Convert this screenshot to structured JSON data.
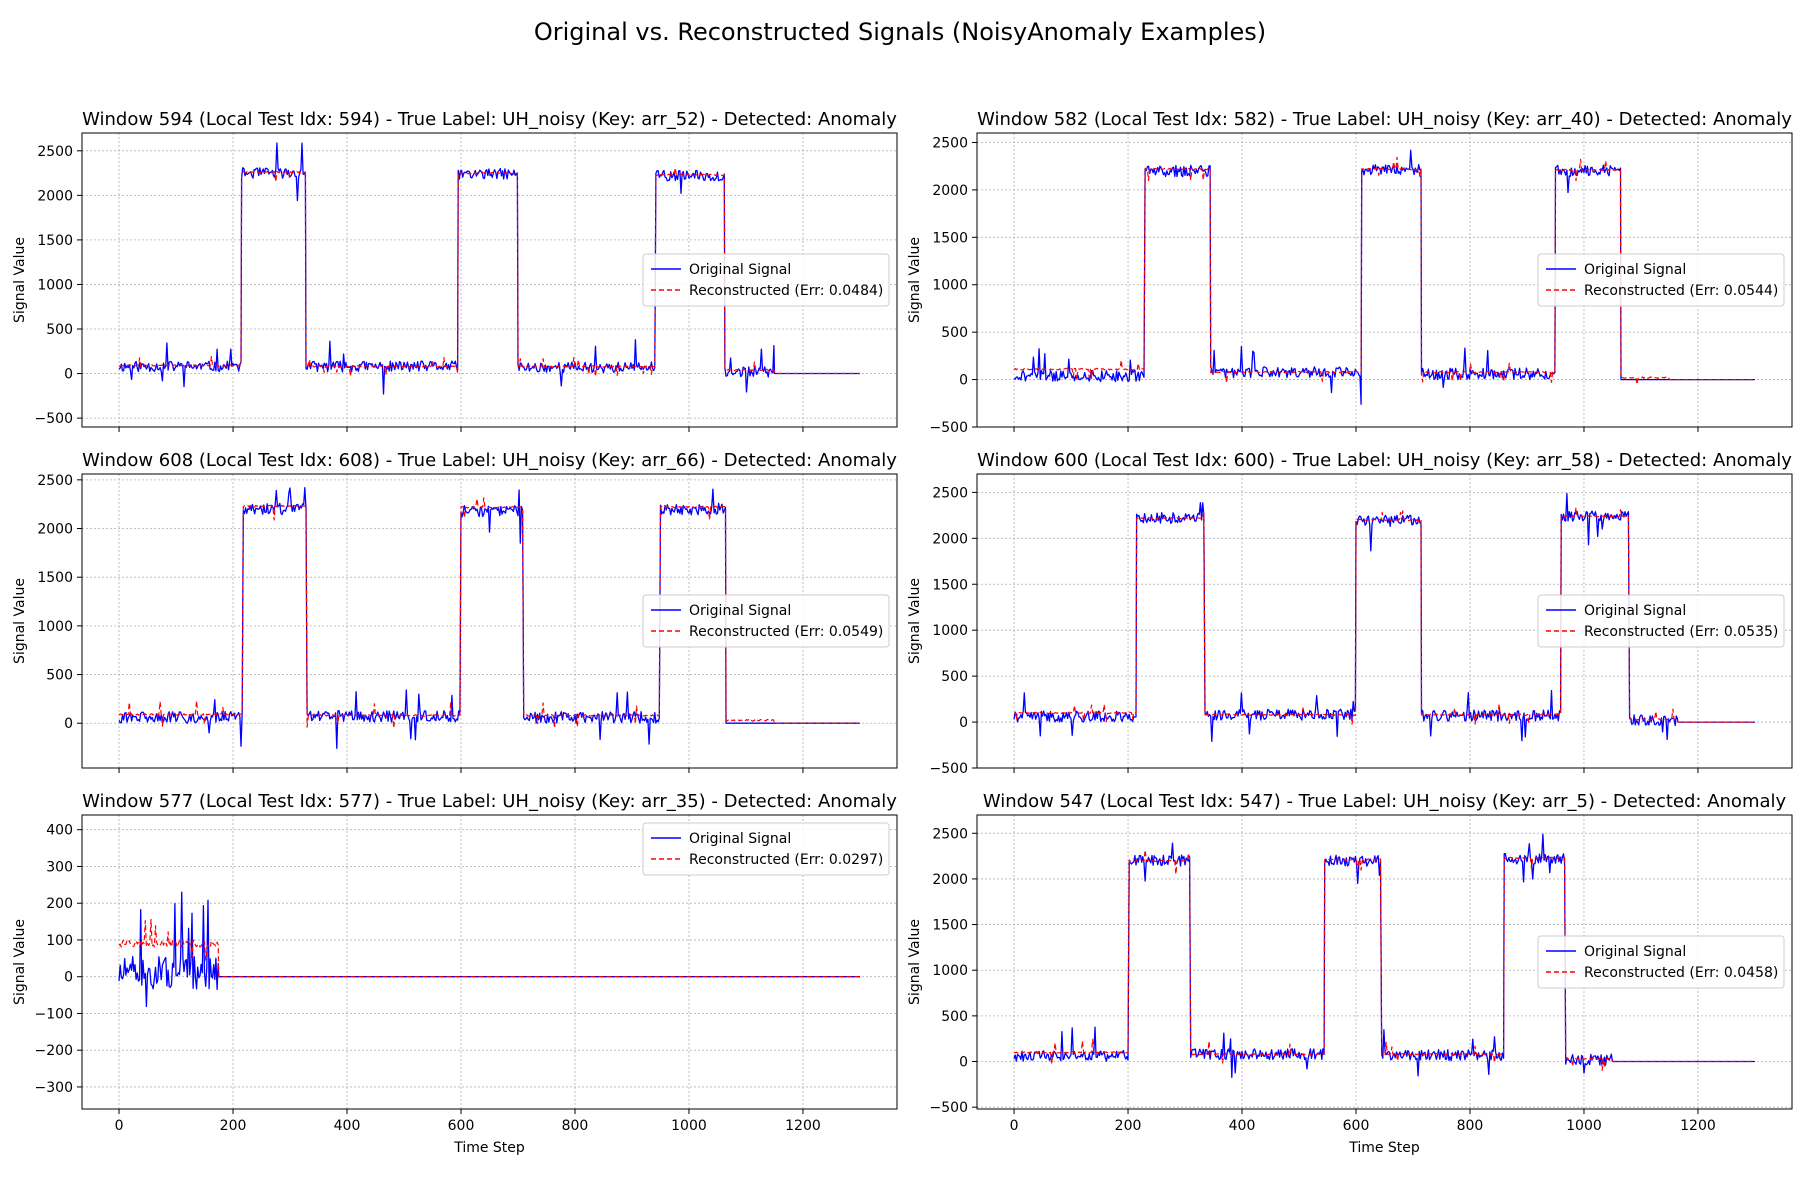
{
  "figure": {
    "title": "Original vs. Reconstructed Signals (NoisyAnomaly Examples)"
  },
  "colors": {
    "original": "#0000ff",
    "reconstructed": "#ff0000",
    "grid": "#b0b0b0"
  },
  "chart_data": [
    {
      "type": "line",
      "title": "Window 594 (Local Test Idx: 594) - True Label: UH_noisy (Key: arr_52) - Detected: Anomaly",
      "xlabel": "",
      "ylabel": "Signal Value",
      "xlim": [
        -65,
        1365
      ],
      "ylim": [
        -600,
        2700
      ],
      "xticks": [],
      "yticks": [
        -500,
        0,
        500,
        1000,
        1500,
        2000,
        2500
      ],
      "grid": true,
      "legend": "center-right",
      "series": [
        {
          "name": "Original Signal",
          "style": "solid",
          "seed": 11,
          "noise": 60,
          "spike": 320,
          "segments": [
            [
              0,
              215,
              80
            ],
            [
              215,
              328,
              2250
            ],
            [
              328,
              595,
              80
            ],
            [
              595,
              700,
              2240
            ],
            [
              700,
              942,
              70
            ],
            [
              942,
              1063,
              2220
            ],
            [
              1063,
              1150,
              20
            ],
            [
              1150,
              1300,
              0
            ]
          ]
        },
        {
          "name": "Reconstructed (Err: 0.0484)",
          "style": "dashed",
          "seed": 12,
          "noise": 8,
          "spike": 120,
          "segments": [
            [
              0,
              215,
              90
            ],
            [
              215,
              328,
              2260
            ],
            [
              328,
              595,
              80
            ],
            [
              595,
              700,
              2250
            ],
            [
              700,
              942,
              80
            ],
            [
              942,
              1063,
              2230
            ],
            [
              1063,
              1150,
              40
            ],
            [
              1150,
              1300,
              0
            ]
          ]
        }
      ]
    },
    {
      "type": "line",
      "title": "Window 582 (Local Test Idx: 582) - True Label: UH_noisy (Key: arr_40) - Detected: Anomaly",
      "xlabel": "",
      "ylabel": "Signal Value",
      "xlim": [
        -65,
        1365
      ],
      "ylim": [
        -500,
        2600
      ],
      "xticks": [],
      "yticks": [
        -500,
        0,
        500,
        1000,
        1500,
        2000,
        2500
      ],
      "grid": true,
      "legend": "center-right",
      "series": [
        {
          "name": "Original Signal",
          "style": "solid",
          "seed": 21,
          "noise": 60,
          "spike": 300,
          "segments": [
            [
              0,
              230,
              40
            ],
            [
              230,
              345,
              2200
            ],
            [
              345,
              610,
              80
            ],
            [
              610,
              715,
              2210
            ],
            [
              715,
              950,
              60
            ],
            [
              950,
              1065,
              2200
            ],
            [
              1065,
              1150,
              0
            ],
            [
              1150,
              1300,
              0
            ]
          ]
        },
        {
          "name": "Reconstructed (Err: 0.0544)",
          "style": "dashed",
          "seed": 22,
          "noise": 8,
          "spike": 120,
          "segments": [
            [
              0,
              230,
              110
            ],
            [
              230,
              345,
              2220
            ],
            [
              345,
              610,
              80
            ],
            [
              610,
              715,
              2220
            ],
            [
              715,
              950,
              80
            ],
            [
              950,
              1065,
              2210
            ],
            [
              1065,
              1150,
              20
            ],
            [
              1150,
              1300,
              0
            ]
          ]
        }
      ]
    },
    {
      "type": "line",
      "title": "Window 608 (Local Test Idx: 608) - True Label: UH_noisy (Key: arr_66) - Detected: Anomaly",
      "xlabel": "",
      "ylabel": "Signal Value",
      "xlim": [
        -65,
        1365
      ],
      "ylim": [
        -460,
        2560
      ],
      "xticks": [],
      "yticks": [
        0,
        500,
        1000,
        1500,
        2000,
        2500
      ],
      "grid": true,
      "legend": "center-right",
      "series": [
        {
          "name": "Original Signal",
          "style": "solid",
          "seed": 31,
          "noise": 60,
          "spike": 320,
          "segments": [
            [
              0,
              218,
              60
            ],
            [
              218,
              330,
              2200
            ],
            [
              330,
              600,
              70
            ],
            [
              600,
              710,
              2180
            ],
            [
              710,
              950,
              60
            ],
            [
              950,
              1065,
              2200
            ],
            [
              1065,
              1150,
              0
            ],
            [
              1150,
              1300,
              0
            ]
          ]
        },
        {
          "name": "Reconstructed (Err: 0.0549)",
          "style": "dashed",
          "seed": 32,
          "noise": 8,
          "spike": 150,
          "segments": [
            [
              0,
              218,
              90
            ],
            [
              218,
              330,
              2230
            ],
            [
              330,
              600,
              80
            ],
            [
              600,
              710,
              2220
            ],
            [
              710,
              950,
              80
            ],
            [
              950,
              1065,
              2220
            ],
            [
              1065,
              1150,
              30
            ],
            [
              1150,
              1300,
              0
            ]
          ]
        }
      ]
    },
    {
      "type": "line",
      "title": "Window 600 (Local Test Idx: 600) - True Label: UH_noisy (Key: arr_58) - Detected: Anomaly",
      "xlabel": "",
      "ylabel": "Signal Value",
      "xlim": [
        -65,
        1365
      ],
      "ylim": [
        -500,
        2700
      ],
      "xticks": [],
      "yticks": [
        -500,
        0,
        500,
        1000,
        1500,
        2000,
        2500
      ],
      "grid": true,
      "legend": "center-right",
      "series": [
        {
          "name": "Original Signal",
          "style": "solid",
          "seed": 41,
          "noise": 60,
          "spike": 300,
          "segments": [
            [
              0,
              215,
              60
            ],
            [
              215,
              335,
              2220
            ],
            [
              335,
              600,
              80
            ],
            [
              600,
              715,
              2190
            ],
            [
              715,
              960,
              70
            ],
            [
              960,
              1080,
              2240
            ],
            [
              1080,
              1165,
              20
            ],
            [
              1165,
              1300,
              0
            ]
          ]
        },
        {
          "name": "Reconstructed (Err: 0.0535)",
          "style": "dashed",
          "seed": 42,
          "noise": 8,
          "spike": 120,
          "segments": [
            [
              0,
              215,
              100
            ],
            [
              215,
              335,
              2220
            ],
            [
              335,
              600,
              80
            ],
            [
              600,
              715,
              2200
            ],
            [
              715,
              960,
              80
            ],
            [
              960,
              1080,
              2240
            ],
            [
              1080,
              1165,
              30
            ],
            [
              1165,
              1300,
              0
            ]
          ]
        }
      ]
    },
    {
      "type": "line",
      "title": "Window 577 (Local Test Idx: 577) - True Label: UH_noisy (Key: arr_35) - Detected: Anomaly",
      "xlabel": "Time Step",
      "ylabel": "Signal Value",
      "xlim": [
        -65,
        1365
      ],
      "ylim": [
        -360,
        440
      ],
      "xticks": [
        0,
        200,
        400,
        600,
        800,
        1000,
        1200
      ],
      "yticks": [
        -300,
        -200,
        -100,
        0,
        100,
        200,
        300,
        400
      ],
      "grid": true,
      "legend": "upper-right",
      "series": [
        {
          "name": "Original Signal",
          "style": "solid",
          "seed": 51,
          "noise": 45,
          "spike": 200,
          "segments": [
            [
              0,
              175,
              10
            ],
            [
              175,
              1300,
              0
            ]
          ]
        },
        {
          "name": "Reconstructed (Err: 0.0297)",
          "style": "dashed",
          "seed": 52,
          "noise": 10,
          "spike": 60,
          "segments": [
            [
              0,
              175,
              90
            ],
            [
              175,
              1300,
              0
            ]
          ]
        }
      ]
    },
    {
      "type": "line",
      "title": "Window 547 (Local Test Idx: 547) - True Label: UH_noisy (Key: arr_5) - Detected: Anomaly",
      "xlabel": "Time Step",
      "ylabel": "Signal Value",
      "xlim": [
        -65,
        1365
      ],
      "ylim": [
        -520,
        2700
      ],
      "xticks": [
        0,
        200,
        400,
        600,
        800,
        1000,
        1200
      ],
      "yticks": [
        -500,
        0,
        500,
        1000,
        1500,
        2000,
        2500
      ],
      "grid": true,
      "legend": "center-right",
      "series": [
        {
          "name": "Original Signal",
          "style": "solid",
          "seed": 61,
          "noise": 60,
          "spike": 300,
          "segments": [
            [
              0,
              202,
              60
            ],
            [
              202,
              310,
              2200
            ],
            [
              310,
              545,
              80
            ],
            [
              545,
              645,
              2200
            ],
            [
              645,
              860,
              70
            ],
            [
              860,
              968,
              2220
            ],
            [
              968,
              1050,
              20
            ],
            [
              1050,
              1300,
              0
            ]
          ]
        },
        {
          "name": "Reconstructed (Err: 0.0458)",
          "style": "dashed",
          "seed": 62,
          "noise": 8,
          "spike": 150,
          "segments": [
            [
              0,
              202,
              100
            ],
            [
              202,
              310,
              2200
            ],
            [
              310,
              545,
              80
            ],
            [
              545,
              645,
              2210
            ],
            [
              645,
              860,
              80
            ],
            [
              860,
              968,
              2230
            ],
            [
              968,
              1050,
              30
            ],
            [
              1050,
              1300,
              0
            ]
          ]
        }
      ]
    }
  ]
}
